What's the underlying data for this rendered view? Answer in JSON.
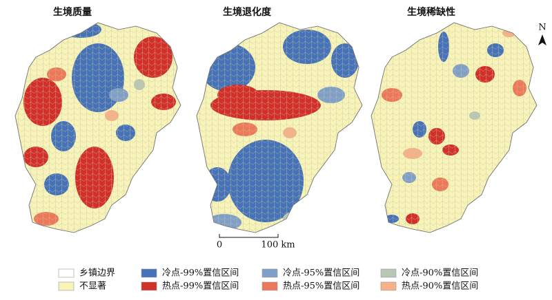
{
  "panels": [
    {
      "title": "生境质量"
    },
    {
      "title": "生境退化度"
    },
    {
      "title": "生境稀缺性"
    }
  ],
  "north": "N",
  "scale_bar": {
    "start": "0",
    "end": "100 km"
  },
  "legend": [
    {
      "label": "乡镇边界",
      "color": "#ffffff"
    },
    {
      "label": "不显著",
      "color": "#f7f3b9"
    },
    {
      "label": "冷点-99%置信区间",
      "color": "#4572b8"
    },
    {
      "label": "热点-99%置信区间",
      "color": "#d32f2a"
    },
    {
      "label": "冷点-95%置信区间",
      "color": "#7f9fc9"
    },
    {
      "label": "热点-95%置信区间",
      "color": "#ec7859"
    },
    {
      "label": "冷点-90%置信区间",
      "color": "#b8c7b3"
    },
    {
      "label": "热点-90%置信区间",
      "color": "#f5b288"
    }
  ]
}
